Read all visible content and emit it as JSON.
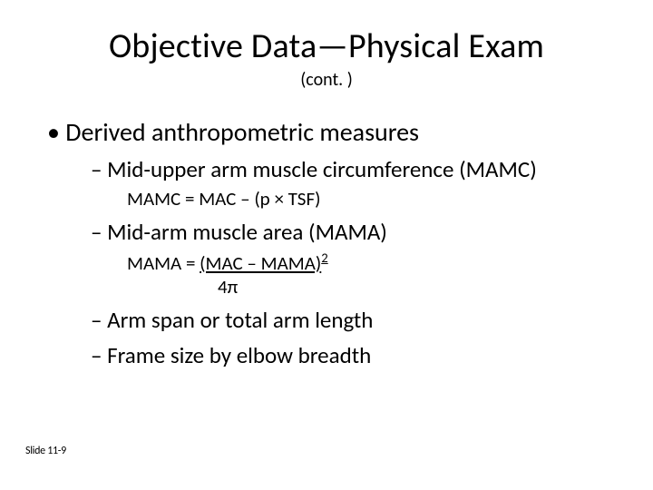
{
  "colors": {
    "background": "#ffffff",
    "text": "#000000"
  },
  "typography": {
    "title_fontsize": 38,
    "subtitle_fontsize": 20,
    "bullet_l1_fontsize": 28,
    "bullet_l2_fontsize": 25,
    "formula_fontsize": 21,
    "footer_fontsize": 12,
    "font_family": "Calibri"
  },
  "title": "Objective Data—Physical Exam",
  "subtitle": "(cont. )",
  "bullet_l1": "Derived anthropometric measures",
  "items": [
    {
      "label": "Mid-upper arm muscle circumference (MAMC)",
      "formula": "MAMC = MAC – (p × TSF)"
    },
    {
      "label": "Mid-arm muscle area (MAMA)",
      "formula_prefix": "MAMA = ",
      "formula_underlined": "(MAC – MAMA)",
      "formula_superscript": "2",
      "formula_denominator": "4π"
    },
    {
      "label": "Arm span or total arm length"
    },
    {
      "label": "Frame size by elbow breadth"
    }
  ],
  "footer": "Slide 11-9"
}
